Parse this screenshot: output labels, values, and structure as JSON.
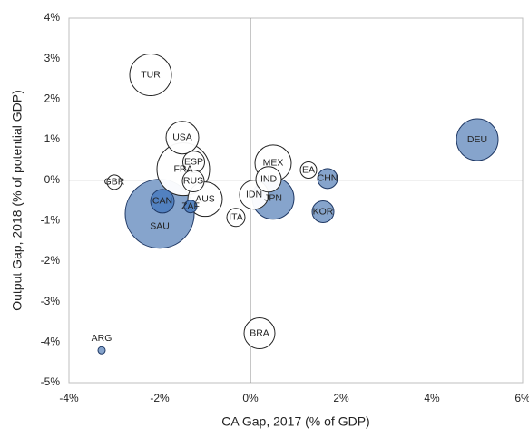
{
  "chart_data": {
    "type": "bubble",
    "x_label": "CA Gap, 2017 (% of GDP)",
    "y_label": "Output Gap, 2018 (% of potential GDP)",
    "xlim": [
      -4,
      6
    ],
    "xticks": [
      {
        "value": -4,
        "label": "-4%"
      },
      {
        "value": -2,
        "label": "-2%"
      },
      {
        "value": 0,
        "label": "0%"
      },
      {
        "value": 2,
        "label": "2%"
      },
      {
        "value": 4,
        "label": "4%"
      },
      {
        "value": 6,
        "label": "6%"
      }
    ],
    "ylim": [
      -5,
      4
    ],
    "yticks": [
      {
        "value": -5,
        "label": "-5%"
      },
      {
        "value": -4,
        "label": "-4%"
      },
      {
        "value": -3,
        "label": "-3%"
      },
      {
        "value": -2,
        "label": "-2%"
      },
      {
        "value": -1,
        "label": "-1%"
      },
      {
        "value": 0,
        "label": "0%"
      },
      {
        "value": 1,
        "label": "1%"
      },
      {
        "value": 2,
        "label": "2%"
      },
      {
        "value": 3,
        "label": "3%"
      },
      {
        "value": 4,
        "label": "4%"
      }
    ],
    "categories": [
      "SAU",
      "FRA",
      "TUR",
      "DEU",
      "JPN",
      "MEX",
      "AUS",
      "USA",
      "BRA",
      "IDN",
      "IND",
      "ESP",
      "CAN",
      "RUS",
      "KOR",
      "CHN",
      "ITA",
      "EA",
      "GBR",
      "ZAF",
      "ARG"
    ],
    "x": [
      -2.0,
      -1.48,
      -2.2,
      5.0,
      0.5,
      0.5,
      -1.0,
      -1.5,
      0.2,
      0.08,
      0.4,
      -1.25,
      -1.94,
      -1.26,
      1.6,
      1.7,
      -0.32,
      1.28,
      -3.0,
      -1.32,
      -3.28
    ],
    "values": [
      -0.83,
      0.27,
      2.6,
      1.0,
      -0.45,
      0.42,
      -0.47,
      1.05,
      -3.78,
      -0.36,
      0.02,
      0.45,
      -0.52,
      -0.02,
      -0.78,
      0.04,
      -0.92,
      0.25,
      -0.05,
      -0.65,
      -4.2
    ],
    "sizes": [
      1444,
      841,
      529,
      529,
      529,
      400,
      361,
      324,
      289,
      256,
      196,
      144,
      169,
      144,
      144,
      121,
      100,
      81,
      64,
      49,
      16
    ],
    "colors": [
      "#7f9fc9",
      "#ffffff",
      "#ffffff",
      "#7f9fc9",
      "#7f9fc9",
      "#ffffff",
      "#ffffff",
      "#ffffff",
      "#ffffff",
      "#ffffff",
      "#ffffff",
      "#ffffff",
      "#4f7fbf",
      "#ffffff",
      "#7f9fc9",
      "#7f9fc9",
      "#ffffff",
      "#ffffff",
      "#ffffff",
      "#4f7fbf",
      "#7f9fc9"
    ]
  }
}
